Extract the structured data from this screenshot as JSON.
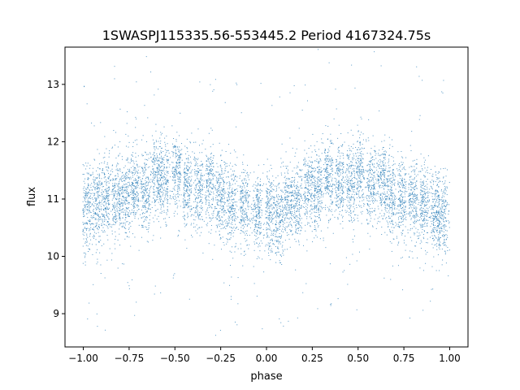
{
  "chart_data": {
    "type": "scatter",
    "title": "1SWASPJ115335.56-553445.2 Period 4167324.75s",
    "xlabel": "phase",
    "ylabel": "flux",
    "xlim": [
      -1.1,
      1.1
    ],
    "ylim": [
      8.42,
      13.65
    ],
    "xticks": [
      "−1.00",
      "−0.75",
      "−0.50",
      "−0.25",
      "0.00",
      "0.25",
      "0.50",
      "0.75",
      "1.00"
    ],
    "xtick_values": [
      -1.0,
      -0.75,
      -0.5,
      -0.25,
      0.0,
      0.25,
      0.5,
      0.75,
      1.0
    ],
    "yticks": [
      "9",
      "10",
      "11",
      "12",
      "13"
    ],
    "ytick_values": [
      9,
      10,
      11,
      12,
      13
    ],
    "grid": false,
    "marker_color": "#1f77b4",
    "series": [
      {
        "profile_phase": [
          0.0,
          0.05,
          0.1,
          0.15,
          0.2,
          0.25,
          0.3,
          0.35,
          0.4,
          0.45,
          0.5,
          0.55,
          0.6,
          0.65,
          0.7,
          0.75,
          0.8,
          0.85,
          0.9,
          0.95,
          1.0
        ],
        "profile_median_flux": [
          10.75,
          10.85,
          10.95,
          11.05,
          11.1,
          11.25,
          11.2,
          11.25,
          11.4,
          11.35,
          11.4,
          11.3,
          11.2,
          11.1,
          11.0,
          11.05,
          10.95,
          10.85,
          10.85,
          10.8,
          10.75
        ],
        "cluster_phase": [
          -0.98,
          -0.93,
          -0.88,
          -0.82,
          -0.77,
          -0.72,
          -0.66,
          -0.6,
          -0.56,
          -0.49,
          -0.43,
          -0.37,
          -0.31,
          -0.25,
          -0.19,
          -0.12,
          -0.05,
          0.02,
          0.07,
          0.12,
          0.17,
          0.23,
          0.28,
          0.34,
          0.4,
          0.46,
          0.51,
          0.57,
          0.63,
          0.68,
          0.74,
          0.8,
          0.86,
          0.92,
          0.96
        ],
        "cluster_center_flux": [
          10.8,
          10.9,
          11.0,
          11.0,
          11.0,
          11.2,
          11.1,
          11.4,
          11.3,
          11.5,
          11.2,
          11.2,
          11.3,
          11.0,
          10.9,
          10.9,
          10.8,
          10.8,
          10.6,
          11.0,
          10.9,
          11.2,
          11.1,
          11.4,
          11.3,
          11.2,
          11.5,
          11.2,
          11.3,
          11.1,
          11.0,
          11.0,
          10.9,
          10.8,
          10.7
        ]
      }
    ]
  }
}
